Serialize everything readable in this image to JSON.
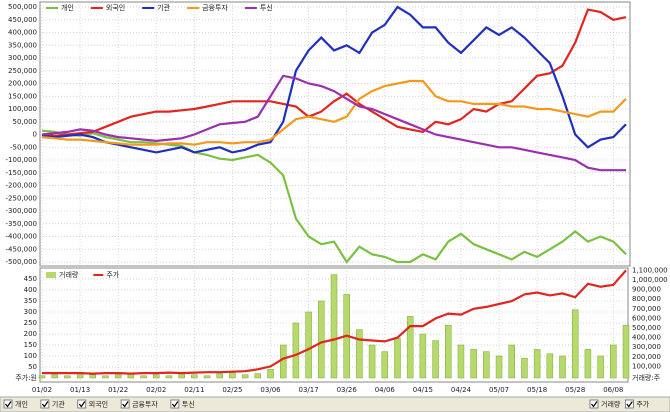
{
  "chart_data": [
    {
      "type": "line",
      "grid": true,
      "legend": "top-left",
      "ylim": [
        -500000,
        500000
      ],
      "yticks": [
        {
          "value": 500000,
          "label": "500,000"
        },
        {
          "value": 450000,
          "label": "450,000"
        },
        {
          "value": 400000,
          "label": "400,000"
        },
        {
          "value": 350000,
          "label": "350,000"
        },
        {
          "value": 300000,
          "label": "300,000"
        },
        {
          "value": 250000,
          "label": "250,000"
        },
        {
          "value": 200000,
          "label": "200,000"
        },
        {
          "value": 150000,
          "label": "150,000"
        },
        {
          "value": 100000,
          "label": "100,000"
        },
        {
          "value": 50000,
          "label": "50,000"
        },
        0,
        {
          "value": -50000,
          "label": "-50,000"
        },
        {
          "value": -100000,
          "label": "-100,000"
        },
        {
          "value": -150000,
          "label": "-150,000"
        },
        {
          "value": -200000,
          "label": "-200,000"
        },
        {
          "value": -250000,
          "label": "-250,000"
        },
        {
          "value": -300000,
          "label": "-300,000"
        },
        {
          "value": -350000,
          "label": "-350,000"
        },
        {
          "value": -400000,
          "label": "-400,000"
        },
        {
          "value": -450000,
          "label": "-450,000"
        },
        {
          "value": -500000,
          "label": "-500,000"
        }
      ],
      "series": [
        {
          "name": "개인",
          "color": "#7ac143",
          "values": [
            15000,
            10000,
            0,
            -5000,
            5000,
            -10000,
            -20000,
            -30000,
            -30000,
            -35000,
            -40000,
            -45000,
            -70000,
            -80000,
            -95000,
            -100000,
            -90000,
            -80000,
            -110000,
            -160000,
            -330000,
            -400000,
            -430000,
            -420000,
            -500000,
            -440000,
            -470000,
            -480000,
            -500000,
            -500000,
            -470000,
            -490000,
            -420000,
            -390000,
            -430000,
            -450000,
            -470000,
            -490000,
            -460000,
            -480000,
            -450000,
            -420000,
            -380000,
            -420000,
            -400000,
            -420000,
            -470000
          ]
        },
        {
          "name": "외국인",
          "color": "#e0261f",
          "values": [
            0,
            -5000,
            0,
            5000,
            10000,
            30000,
            50000,
            70000,
            80000,
            90000,
            90000,
            95000,
            100000,
            110000,
            120000,
            130000,
            130000,
            130000,
            130000,
            120000,
            110000,
            70000,
            90000,
            130000,
            160000,
            120000,
            90000,
            60000,
            30000,
            20000,
            10000,
            50000,
            40000,
            60000,
            100000,
            90000,
            120000,
            130000,
            180000,
            230000,
            240000,
            270000,
            360000,
            490000,
            480000,
            450000,
            460000
          ]
        },
        {
          "name": "기관",
          "color": "#1f2fbf",
          "values": [
            -5000,
            -10000,
            -5000,
            0,
            -10000,
            -30000,
            -40000,
            -50000,
            -60000,
            -70000,
            -60000,
            -50000,
            -70000,
            -60000,
            -50000,
            -70000,
            -60000,
            -40000,
            -30000,
            50000,
            250000,
            330000,
            380000,
            330000,
            350000,
            320000,
            400000,
            430000,
            500000,
            470000,
            420000,
            420000,
            360000,
            320000,
            370000,
            420000,
            390000,
            420000,
            380000,
            330000,
            280000,
            150000,
            0,
            -50000,
            -20000,
            -10000,
            40000
          ]
        },
        {
          "name": "금융투자",
          "color": "#f39a1e",
          "values": [
            -10000,
            -15000,
            -20000,
            -20000,
            -25000,
            -30000,
            -35000,
            -40000,
            -40000,
            -40000,
            -35000,
            -35000,
            -40000,
            -30000,
            -30000,
            -35000,
            -30000,
            -30000,
            -20000,
            20000,
            60000,
            70000,
            60000,
            50000,
            70000,
            140000,
            170000,
            190000,
            200000,
            210000,
            210000,
            150000,
            130000,
            130000,
            120000,
            120000,
            120000,
            110000,
            110000,
            100000,
            100000,
            90000,
            80000,
            70000,
            90000,
            90000,
            140000
          ]
        },
        {
          "name": "투신",
          "color": "#9a2fb0",
          "values": [
            0,
            5000,
            10000,
            20000,
            15000,
            0,
            -10000,
            -15000,
            -20000,
            -25000,
            -20000,
            -15000,
            0,
            20000,
            40000,
            45000,
            50000,
            70000,
            150000,
            230000,
            220000,
            200000,
            190000,
            170000,
            140000,
            110000,
            100000,
            80000,
            60000,
            40000,
            20000,
            0,
            -10000,
            -20000,
            -30000,
            -40000,
            -50000,
            -50000,
            -60000,
            -70000,
            -80000,
            -90000,
            -100000,
            -130000,
            -140000,
            -140000,
            -140000
          ]
        }
      ]
    },
    {
      "type": "combo",
      "grid": true,
      "legend": "top-left",
      "categories": [
        "01/02",
        null,
        null,
        "01/13",
        null,
        null,
        "01/22",
        null,
        null,
        "02/02",
        null,
        null,
        "02/11",
        null,
        null,
        "02/25",
        null,
        null,
        "03/06",
        null,
        null,
        "03/17",
        null,
        null,
        "03/26",
        null,
        null,
        "04/06",
        null,
        null,
        "04/15",
        null,
        null,
        "04/24",
        null,
        null,
        "05/07",
        null,
        null,
        "05/18",
        null,
        null,
        "05/28",
        null,
        null,
        "06/08",
        null
      ],
      "ylim": [
        0,
        500
      ],
      "yticks": [
        50,
        100,
        150,
        200,
        250,
        300,
        350,
        400,
        450
      ],
      "y_axis_label": "주가:원",
      "y2lim": [
        0,
        1125000
      ],
      "y2ticks": [
        {
          "value": 100000,
          "label": "100,000"
        },
        {
          "value": 200000,
          "label": "200,000"
        },
        {
          "value": 300000,
          "label": "300,000"
        },
        {
          "value": 400000,
          "label": "400,000"
        },
        {
          "value": 500000,
          "label": "500,000"
        },
        {
          "value": 600000,
          "label": "600,000"
        },
        {
          "value": 700000,
          "label": "700,000"
        },
        {
          "value": 800000,
          "label": "800,000"
        },
        {
          "value": 900000,
          "label": "900,000"
        },
        {
          "value": 1000000,
          "label": "1,000,000"
        },
        {
          "value": 1100000,
          "label": "1,100,000"
        }
      ],
      "y2_axis_label": "거래량:주",
      "series": [
        {
          "name": "거래량",
          "color": "#b5d96a",
          "type": "bar",
          "values": [
            10,
            15,
            10,
            20,
            15,
            10,
            15,
            20,
            10,
            15,
            10,
            20,
            15,
            10,
            20,
            25,
            15,
            20,
            40,
            150,
            250,
            300,
            350,
            470,
            380,
            220,
            150,
            120,
            180,
            280,
            200,
            170,
            240,
            150,
            130,
            120,
            100,
            150,
            90,
            130,
            110,
            100,
            310,
            130,
            100,
            150,
            240
          ]
        },
        {
          "name": "주가",
          "color": "#e0261f",
          "type": "line",
          "axis": "y2",
          "values": [
            30000,
            30000,
            30000,
            30000,
            25000,
            30000,
            30000,
            25000,
            30000,
            30000,
            35000,
            30000,
            35000,
            40000,
            40000,
            45000,
            50000,
            70000,
            100000,
            180000,
            220000,
            280000,
            350000,
            380000,
            420000,
            380000,
            370000,
            360000,
            400000,
            520000,
            520000,
            600000,
            650000,
            640000,
            700000,
            720000,
            750000,
            780000,
            850000,
            870000,
            840000,
            860000,
            820000,
            960000,
            930000,
            950000,
            1100000
          ]
        }
      ]
    }
  ],
  "controls": {
    "left": [
      "개인",
      "기관",
      "외국인",
      "금융투자",
      "투신"
    ],
    "right": [
      "거래량",
      "주가"
    ]
  }
}
